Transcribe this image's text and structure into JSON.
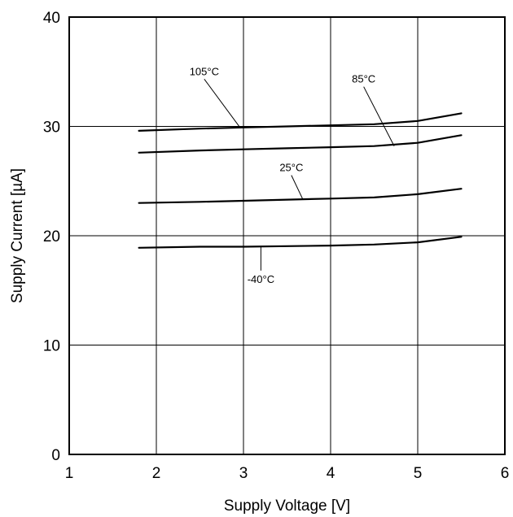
{
  "chart_data": {
    "type": "line",
    "title": "",
    "xlabel": "Supply Voltage [V]",
    "ylabel": "Supply Current [µA]",
    "xlim": [
      1,
      6
    ],
    "ylim": [
      0,
      40
    ],
    "xticks": [
      1,
      2,
      3,
      4,
      5,
      6
    ],
    "yticks": [
      0,
      10,
      20,
      30,
      40
    ],
    "xtick_labels": [
      "1",
      "2",
      "3",
      "4",
      "5",
      "6"
    ],
    "ytick_labels": [
      "0",
      "10",
      "20",
      "30",
      "40"
    ],
    "grid": true,
    "legend": "none",
    "series": [
      {
        "name": "105°C",
        "x": [
          1.8,
          2.5,
          3.0,
          3.5,
          4.0,
          4.5,
          5.0,
          5.5
        ],
        "y": [
          29.6,
          29.8,
          29.9,
          30.0,
          30.1,
          30.2,
          30.5,
          31.2
        ]
      },
      {
        "name": "85°C",
        "x": [
          1.8,
          2.5,
          3.0,
          3.5,
          4.0,
          4.5,
          5.0,
          5.5
        ],
        "y": [
          27.6,
          27.8,
          27.9,
          28.0,
          28.1,
          28.2,
          28.5,
          29.2
        ]
      },
      {
        "name": "25°C",
        "x": [
          1.8,
          2.5,
          3.0,
          3.5,
          4.0,
          4.5,
          5.0,
          5.5
        ],
        "y": [
          23.0,
          23.1,
          23.2,
          23.3,
          23.4,
          23.5,
          23.8,
          24.3
        ]
      },
      {
        "name": "-40°C",
        "x": [
          1.8,
          2.5,
          3.0,
          3.5,
          4.0,
          4.5,
          5.0,
          5.5
        ],
        "y": [
          18.9,
          19.0,
          19.0,
          19.05,
          19.1,
          19.2,
          19.4,
          19.9
        ]
      }
    ],
    "annotations": [
      {
        "text": "105°C",
        "label_x": 2.55,
        "label_y": 34.7,
        "point_x": 2.96,
        "point_y": 29.9
      },
      {
        "text": "85°C",
        "label_x": 4.38,
        "label_y": 34.0,
        "point_x": 4.73,
        "point_y": 28.2
      },
      {
        "text": "25°C",
        "label_x": 3.55,
        "label_y": 25.9,
        "point_x": 3.68,
        "point_y": 23.35
      },
      {
        "text": "-40°C",
        "label_x": 3.2,
        "label_y": 15.7,
        "point_x": 3.2,
        "point_y": 19.05
      }
    ],
    "colors": {
      "line": "#000000",
      "grid": "#000000",
      "background": "#ffffff"
    }
  }
}
